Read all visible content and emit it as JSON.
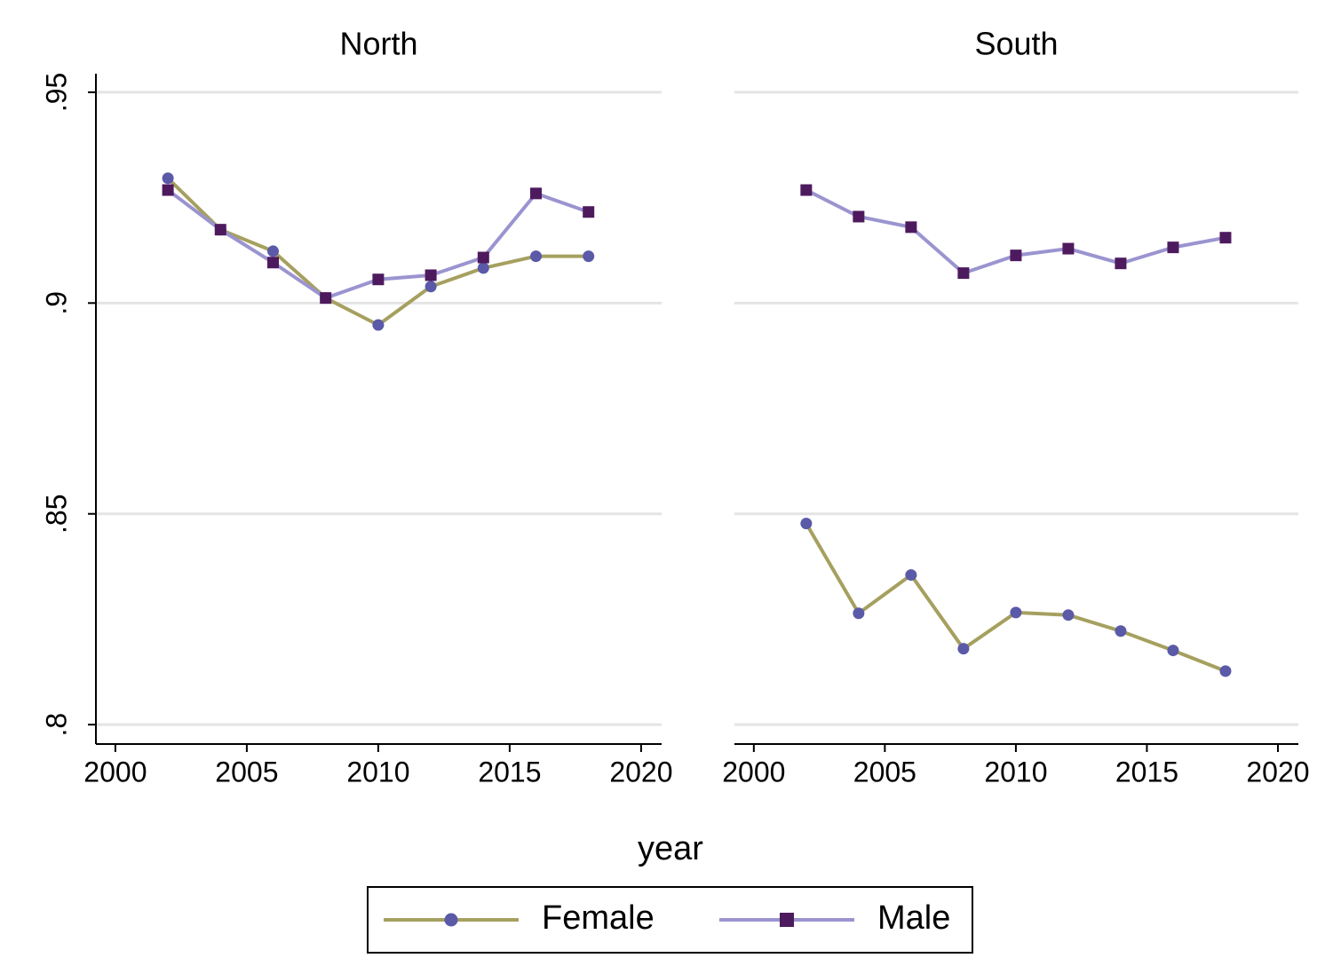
{
  "chart_data": {
    "type": "line",
    "x_label": "year",
    "x": [
      2002,
      2004,
      2006,
      2008,
      2010,
      2012,
      2014,
      2016,
      2018
    ],
    "xlim": [
      1999.26,
      2020.78
    ],
    "xticks": [
      2000,
      2005,
      2010,
      2015,
      2020
    ],
    "ylim": [
      0.7954,
      0.9544
    ],
    "yticks": [
      {
        "value": 0.8,
        "label": ".8"
      },
      {
        "value": 0.85,
        "label": ".85"
      },
      {
        "value": 0.9,
        "label": ".9"
      },
      {
        "value": 0.95,
        "label": ".95"
      }
    ],
    "grid": true,
    "legend": "bottom",
    "series": [
      {
        "name": "Female",
        "color": "#a6a060",
        "marker_color": "#5a5aa8",
        "marker": "circle"
      },
      {
        "name": "Male",
        "color": "#9a94d0",
        "marker_color": "#4e1a5e",
        "marker": "square"
      }
    ],
    "panels": [
      {
        "title": "North",
        "series": [
          {
            "values": [
              0.9296,
              0.9174,
              0.9123,
              0.9012,
              0.8948,
              0.9039,
              0.9083,
              0.9111,
              0.9111
            ]
          },
          {
            "values": [
              0.9268,
              0.9174,
              0.9096,
              0.9012,
              0.9056,
              0.9066,
              0.9108,
              0.926,
              0.9216
            ]
          }
        ]
      },
      {
        "title": "South",
        "series": [
          {
            "values": [
              0.8477,
              0.8264,
              0.8355,
              0.818,
              0.8266,
              0.826,
              0.8222,
              0.8176,
              0.8127
            ]
          },
          {
            "values": [
              0.9268,
              0.9205,
              0.918,
              0.9071,
              0.9113,
              0.9129,
              0.9094,
              0.9132,
              0.9155
            ]
          }
        ]
      }
    ]
  }
}
